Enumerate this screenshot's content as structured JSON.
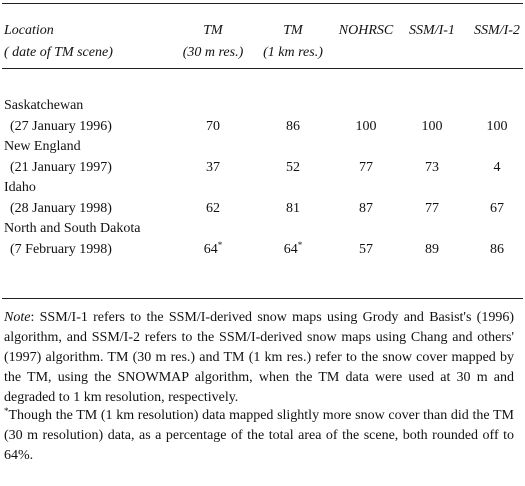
{
  "table": {
    "header": [
      [
        "Location",
        "( date of TM scene)"
      ],
      [
        "TM",
        "(30 m res.)"
      ],
      [
        "TM",
        "(1 km res.)"
      ],
      [
        "NOHRSC"
      ],
      [
        "SSM/I-1"
      ],
      [
        "SSM/I-2"
      ]
    ],
    "rows": [
      {
        "location": "Saskatchewan",
        "date": "(27 January 1996)",
        "values": [
          70,
          86,
          100,
          100,
          100
        ]
      },
      {
        "location": "New England",
        "date": "(21 January 1997)",
        "values": [
          37,
          52,
          77,
          73,
          4
        ]
      },
      {
        "location": "Idaho",
        "date": "(28 January 1998)",
        "values": [
          62,
          81,
          87,
          77,
          67
        ]
      },
      {
        "location": "North and South Dakota",
        "date": "(7 February 1998)",
        "values": [
          {
            "value": 64,
            "mark": "*"
          },
          {
            "value": 64,
            "mark": "*"
          },
          57,
          89,
          86
        ]
      }
    ]
  },
  "note": {
    "label": "Note",
    "text": ": SSM/I-1 refers to the SSM/I-derived snow maps using Grody and Basist's (1996) algorithm, and SSM/I-2 refers to the SSM/I-derived snow maps using Chang and others' (1997) algorithm. TM (30 m res.) and TM (1 km res.) refer to the snow cover mapped by the TM, using the SNOWMAP algorithm, when the TM data were used at 30 m and degraded to 1 km resolution, respectively."
  },
  "footnote": {
    "mark": "*",
    "text": "Though the TM (1 km resolution) data mapped slightly more snow cover than did the TM (30 m resolution) data, as a percentage of the total area of the scene, both rounded off to 64%."
  }
}
